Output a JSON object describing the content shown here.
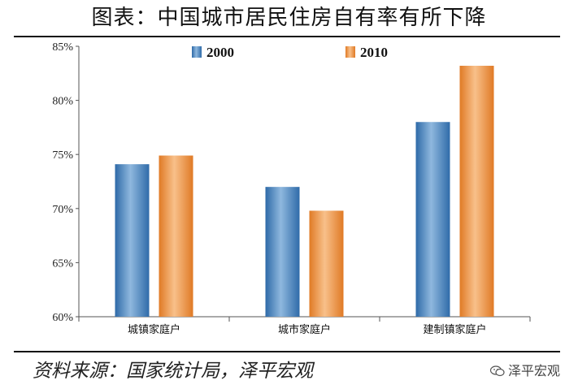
{
  "title": "图表：中国城市居民住房自有率有所下降",
  "source": "资料来源：国家统计局，泽平宏观",
  "watermark": "泽平宏观",
  "colors": {
    "series_2000": "#4a86c0",
    "series_2010": "#e8893a"
  },
  "chart_data": {
    "type": "bar",
    "categories": [
      "城镇家庭户",
      "城市家庭户",
      "建制镇家庭户"
    ],
    "series": [
      {
        "name": "2000",
        "values": [
          74.1,
          72.0,
          78.0
        ]
      },
      {
        "name": "2010",
        "values": [
          74.9,
          69.8,
          83.2
        ]
      }
    ],
    "ylim": [
      60,
      85
    ],
    "yticks": [
      60,
      65,
      70,
      75,
      80,
      85
    ],
    "ytick_labels": [
      "60%",
      "65%",
      "70%",
      "75%",
      "80%",
      "85%"
    ],
    "legend": "top"
  }
}
